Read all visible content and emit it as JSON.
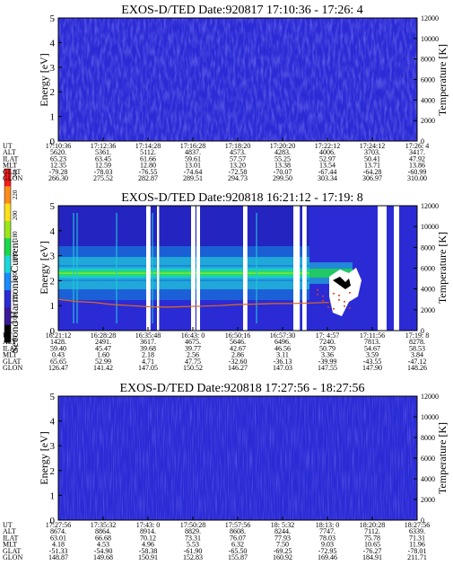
{
  "colors": {
    "bg_blue": "#2b2bd6",
    "bg_blue_dark": "#1f1fb8",
    "bg_blue_light": "#3a3ae6",
    "band_green": "#22d84a",
    "band_cyan": "#20c8d8",
    "band_yellow": "#c8e838",
    "temperature_trace": "#e06a1e"
  },
  "colorbar": {
    "label": "Second Harmonic Current",
    "ticks": [
      "240",
      "220",
      "200",
      "180",
      "160",
      "140",
      "120",
      "100",
      "80"
    ],
    "colors": [
      "#ff1a1a",
      "#ff8c1a",
      "#ffe01a",
      "#9be81a",
      "#1ad84a",
      "#1ad8d8",
      "#1a8cff",
      "#2b2bd6",
      "#3a1a9a",
      "#000000"
    ]
  },
  "chart_data": [
    {
      "type": "heatmap",
      "title": "EXOS-D/TED   Date:920817  17:10:36 - 17:26: 4",
      "ylabel": "Energy [eV]",
      "y2label": "Temperature [K]",
      "ylim": [
        0,
        5
      ],
      "y2lim": [
        0,
        12000
      ],
      "yticks": [
        "0",
        "1",
        "2",
        "3",
        "4",
        "5"
      ],
      "y2ticks": [
        "0",
        "2000",
        "4000",
        "6000",
        "8000",
        "10000",
        "12000"
      ],
      "ephemeris": {
        "labels": [
          "UT",
          "ALT",
          "ILAT",
          "MLT",
          "GLAT",
          "GLON"
        ],
        "columns": [
          [
            "17:10:36",
            "5620.",
            "65.23",
            "12.35",
            "-79.28",
            "266.30"
          ],
          [
            "17:12:36",
            "5361.",
            "63.45",
            "12.59",
            "-78.03",
            "275.52"
          ],
          [
            "17:14:28",
            "5112.",
            "61.66",
            "12.80",
            "-76.55",
            "282.87"
          ],
          [
            "17:16:28",
            "4837.",
            "59.61",
            "13.01",
            "-74.64",
            "289.51"
          ],
          [
            "17:18:20",
            "4573.",
            "57.57",
            "13.20",
            "-72.58",
            "294.73"
          ],
          [
            "17:20:20",
            "4283.",
            "55.25",
            "13.38",
            "-70.07",
            "299.50"
          ],
          [
            "17:22:12",
            "4006.",
            "52.97",
            "13.54",
            "-67.44",
            "303.34"
          ],
          [
            "17:24:12",
            "3703.",
            "50.41",
            "13.71",
            "-64.28",
            "306.97"
          ],
          [
            "17:26: 4",
            "3417.",
            "47.92",
            "13.86",
            "-60.99",
            "310.00"
          ]
        ]
      },
      "bands": []
    },
    {
      "type": "heatmap",
      "title": "EXOS-D/TED   Date:920818  16:21:12 - 17:19: 8",
      "ylabel": "Energy [eV]",
      "y2label": "Temperature [K]",
      "ylim": [
        0,
        5
      ],
      "y2lim": [
        0,
        12000
      ],
      "yticks": [
        "0",
        "1",
        "2",
        "3",
        "4",
        "5"
      ],
      "y2ticks": [
        "0",
        "2000",
        "4000",
        "6000",
        "8000",
        "10000",
        "12000"
      ],
      "ephemeris": {
        "labels": [
          "UT",
          "ALT",
          "ILAT",
          "MLT",
          "GLAT",
          "GLON"
        ],
        "columns": [
          [
            "16:21:12",
            "1428.",
            "59.40",
            "0.43",
            "65.65",
            "126.47"
          ],
          [
            "16:28:28",
            "2491.",
            "45.47",
            "1.60",
            "52.99",
            "141.42"
          ],
          [
            "16:35:48",
            "3617.",
            "39.68",
            "2.18",
            "4.71",
            "147.05"
          ],
          [
            "16:43: 0",
            "4675.",
            "39.77",
            "2.56",
            "47.75",
            "150.52"
          ],
          [
            "16:50:16",
            "5646.",
            "42.67",
            "2.86",
            "-32.60",
            "146.27"
          ],
          [
            "16:57:30",
            "6496.",
            "46.56",
            "3.11",
            "-36.13",
            "147.03"
          ],
          [
            "17: 4:57",
            "7240.",
            "50.79",
            "3.36",
            "-39.99",
            "147.55"
          ],
          [
            "17:11:56",
            "7813.",
            "54.67",
            "3.59",
            "-43.55",
            "147.90"
          ],
          [
            "17:19: 8",
            "8278.",
            "58.53",
            "3.84",
            "-47.12",
            "148.26"
          ]
        ]
      },
      "band_center_ev": 2.3,
      "temperature_trace": {
        "x_frac": [
          0.0,
          0.05,
          0.1,
          0.15,
          0.2,
          0.25,
          0.3,
          0.35,
          0.4,
          0.45,
          0.5,
          0.55,
          0.6,
          0.65,
          0.7,
          0.75
        ],
        "temperature_k": [
          3000,
          2800,
          2700,
          2500,
          2400,
          2300,
          2250,
          2300,
          2350,
          2400,
          2500,
          2550,
          2600,
          2600,
          2650,
          2700
        ]
      }
    },
    {
      "type": "heatmap",
      "title": "EXOS-D/TED   Date:920818  17:27:56 - 18:27:56",
      "ylabel": "Energy [eV]",
      "y2label": "Temperature [K]",
      "ylim": [
        0,
        5
      ],
      "y2lim": [
        0,
        12000
      ],
      "yticks": [
        "0",
        "1",
        "2",
        "3",
        "4",
        "5"
      ],
      "y2ticks": [
        "0",
        "2000",
        "4000",
        "6000",
        "8000",
        "10000",
        "12000"
      ],
      "ephemeris": {
        "labels": [
          "UT",
          "ALT",
          "ILAT",
          "MLT",
          "GLAT",
          "GLON"
        ],
        "columns": [
          [
            "17:27:56",
            "8674.",
            "63.01",
            "4.18",
            "-51.33",
            "148.87"
          ],
          [
            "17:35:32",
            "8864.",
            "66.68",
            "4.53",
            "-54.90",
            "149.68"
          ],
          [
            "17:43: 0",
            "8914.",
            "70.12",
            "4.96",
            "-58.38",
            "150.91"
          ],
          [
            "17:50:28",
            "8829.",
            "73.31",
            "5.53",
            "-61.90",
            "152.83"
          ],
          [
            "17:57:56",
            "8608.",
            "76.07",
            "6.32",
            "-65.50",
            "155.87"
          ],
          [
            "18: 5:32",
            "8244.",
            "77.93",
            "7.50",
            "-69.25",
            "160.92"
          ],
          [
            "18:13: 0",
            "7747.",
            "78.03",
            "9.03",
            "-72.95",
            "169.46"
          ],
          [
            "18:20:28",
            "7112.",
            "75.78",
            "10.65",
            "-76.27",
            "184.91"
          ],
          [
            "18:27:56",
            "6339.",
            "71.31",
            "11.96",
            "-78.01",
            "211.71"
          ]
        ]
      },
      "bands": []
    }
  ]
}
